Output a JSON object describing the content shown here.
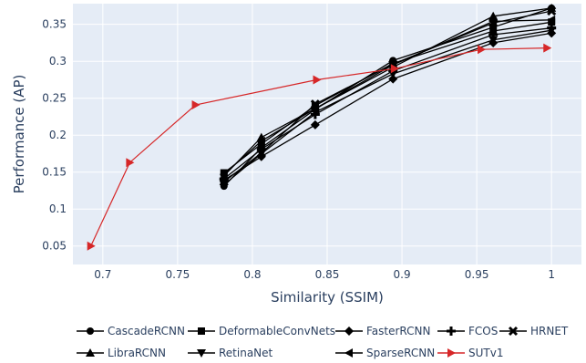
{
  "chart_data": {
    "type": "line",
    "xlabel": "Similarity (SSIM)",
    "ylabel": "Performance (AP)",
    "xlim": [
      0.68,
      1.02
    ],
    "ylim": [
      0.025,
      0.378
    ],
    "x_ticks": [
      "0.7",
      "0.75",
      "0.8",
      "0.85",
      "0.9",
      "0.95",
      "1"
    ],
    "y_ticks": [
      "0.05",
      "0.1",
      "0.15",
      "0.2",
      "0.25",
      "0.3",
      "0.35"
    ],
    "grid": true,
    "legend_position": "bottom",
    "x": [
      0.781,
      0.806,
      0.842,
      0.894,
      0.961,
      1.0
    ],
    "series": [
      {
        "name": "CascadeRCNN",
        "marker": "circle",
        "color": "#000000",
        "values": [
          0.131,
          0.183,
          0.235,
          0.301,
          0.346,
          0.372
        ]
      },
      {
        "name": "DeformableConvNets",
        "marker": "square",
        "color": "#000000",
        "values": [
          0.149,
          0.188,
          0.24,
          0.297,
          0.341,
          0.353
        ]
      },
      {
        "name": "FasterRCNN",
        "marker": "diamond",
        "color": "#000000",
        "values": [
          0.139,
          0.171,
          0.214,
          0.276,
          0.325,
          0.338
        ]
      },
      {
        "name": "FCOS",
        "marker": "cross",
        "color": "#000000",
        "values": [
          0.141,
          0.181,
          0.228,
          0.287,
          0.336,
          0.345
        ]
      },
      {
        "name": "HRNET",
        "marker": "x",
        "color": "#000000",
        "values": [
          0.137,
          0.176,
          0.242,
          0.296,
          0.352,
          0.368
        ]
      },
      {
        "name": "LibraRCNN",
        "marker": "triangle-up",
        "color": "#000000",
        "values": [
          0.145,
          0.197,
          0.236,
          0.292,
          0.361,
          0.372
        ]
      },
      {
        "name": "RetinaNet",
        "marker": "triangle-down",
        "color": "#000000",
        "values": [
          0.133,
          0.175,
          0.231,
          0.283,
          0.329,
          0.342
        ]
      },
      {
        "name": "SparseRCNN",
        "marker": "triangle-left",
        "color": "#000000",
        "values": [
          0.147,
          0.192,
          0.236,
          0.295,
          0.354,
          0.356
        ]
      },
      {
        "name": "SUTv1",
        "marker": "triangle-right",
        "color": "#d62728",
        "x": [
          0.692,
          0.718,
          0.762,
          0.843,
          0.895,
          0.953,
          0.997
        ],
        "values": [
          0.05,
          0.163,
          0.241,
          0.275,
          0.29,
          0.316,
          0.318
        ]
      }
    ]
  }
}
